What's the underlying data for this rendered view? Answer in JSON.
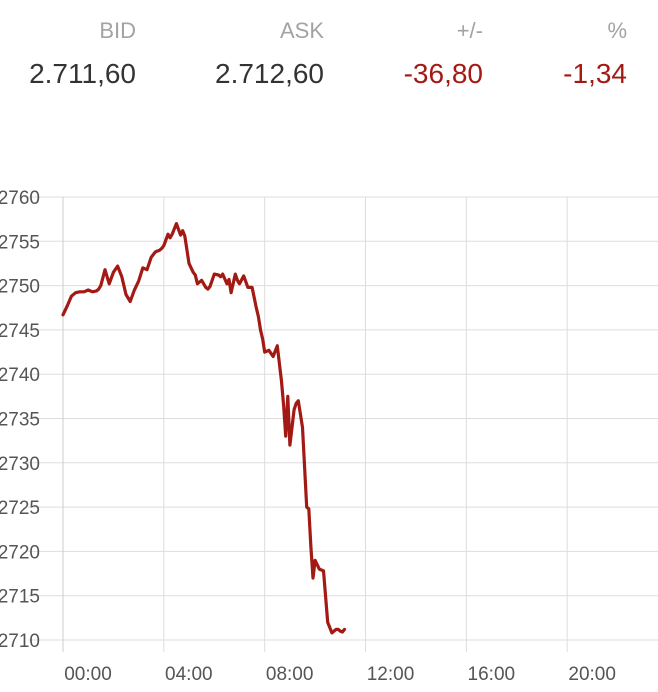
{
  "quote": {
    "bid_label": "BID",
    "bid_value": "2.711,60",
    "ask_label": "ASK",
    "ask_value": "2.712,60",
    "change_label": "+/-",
    "change_value": "-36,80",
    "percent_label": "%",
    "percent_value": "-1,34"
  },
  "colors": {
    "negative": "#a31a15",
    "label": "#a3a3a3",
    "value": "#333333",
    "grid": "#dddddd"
  },
  "chart_data": {
    "type": "line",
    "title": "",
    "xlabel": "",
    "ylabel": "",
    "x_tick_labels": [
      "00:00",
      "04:00",
      "08:00",
      "12:00",
      "16:00",
      "20:00"
    ],
    "y_tick_labels": [
      "2760",
      "2755",
      "2750",
      "2745",
      "2740",
      "2735",
      "2730",
      "2725",
      "2720",
      "2715",
      "2710"
    ],
    "xlim": [
      "00:00",
      "24:00"
    ],
    "ylim": [
      2710,
      2760
    ],
    "grid": true,
    "line_color": "#a31a15",
    "series": [
      {
        "x": [
          "00:00",
          "00:10",
          "00:20",
          "00:30",
          "00:40",
          "00:50",
          "01:00",
          "01:10",
          "01:20",
          "01:25",
          "01:30",
          "01:40",
          "01:50",
          "02:00",
          "02:10",
          "02:20",
          "02:30",
          "02:40",
          "02:50",
          "03:00",
          "03:10",
          "03:20",
          "03:30",
          "03:40",
          "03:45",
          "03:50",
          "03:55",
          "04:00",
          "04:10",
          "04:15",
          "04:20",
          "04:30",
          "04:40",
          "04:45",
          "04:50",
          "05:00",
          "05:10",
          "05:15",
          "05:20",
          "05:30",
          "05:40",
          "05:45",
          "05:50",
          "06:00",
          "06:10",
          "06:15",
          "06:20",
          "06:30",
          "06:35",
          "06:40",
          "06:50",
          "06:55",
          "07:00",
          "07:10",
          "07:20",
          "07:30",
          "07:40",
          "07:45",
          "07:50",
          "07:55",
          "08:00",
          "08:10",
          "08:20",
          "08:30",
          "08:40",
          "08:45",
          "08:50",
          "08:55",
          "09:00",
          "09:05",
          "09:10",
          "09:15",
          "09:20",
          "09:30",
          "09:40",
          "09:45",
          "09:50",
          "09:55",
          "10:00",
          "10:05",
          "10:10",
          "10:20",
          "10:30",
          "10:40",
          "10:50",
          "10:55",
          "11:00",
          "11:05",
          "11:10"
        ],
        "values": [
          2746.7,
          2747.7,
          2748.8,
          2749.2,
          2749.3,
          2749.3,
          2749.5,
          2749.3,
          2749.4,
          2749.6,
          2750.0,
          2751.8,
          2750.2,
          2751.5,
          2752.2,
          2751.0,
          2749.0,
          2748.2,
          2749.5,
          2750.5,
          2752.0,
          2751.8,
          2753.2,
          2753.8,
          2753.9,
          2754.0,
          2754.2,
          2754.5,
          2755.8,
          2755.4,
          2755.8,
          2757.0,
          2755.7,
          2756.2,
          2755.6,
          2752.5,
          2751.5,
          2751.2,
          2750.2,
          2750.6,
          2749.8,
          2749.6,
          2749.9,
          2751.3,
          2751.2,
          2751.0,
          2751.3,
          2750.2,
          2750.7,
          2749.2,
          2751.3,
          2750.6,
          2750.2,
          2751.1,
          2749.8,
          2749.8,
          2747.5,
          2746.5,
          2745.0,
          2744.0,
          2742.5,
          2742.7,
          2742.0,
          2743.2,
          2739.2,
          2736.5,
          2733.0,
          2737.5,
          2732.0,
          2734.0,
          2736.0,
          2736.7,
          2737.0,
          2734.0,
          2725.0,
          2724.8,
          2720.5,
          2717.0,
          2719.0,
          2718.5,
          2718.0,
          2717.8,
          2712.0,
          2710.8,
          2711.2,
          2711.2,
          2711.0,
          2710.9,
          2711.2
        ]
      }
    ]
  }
}
